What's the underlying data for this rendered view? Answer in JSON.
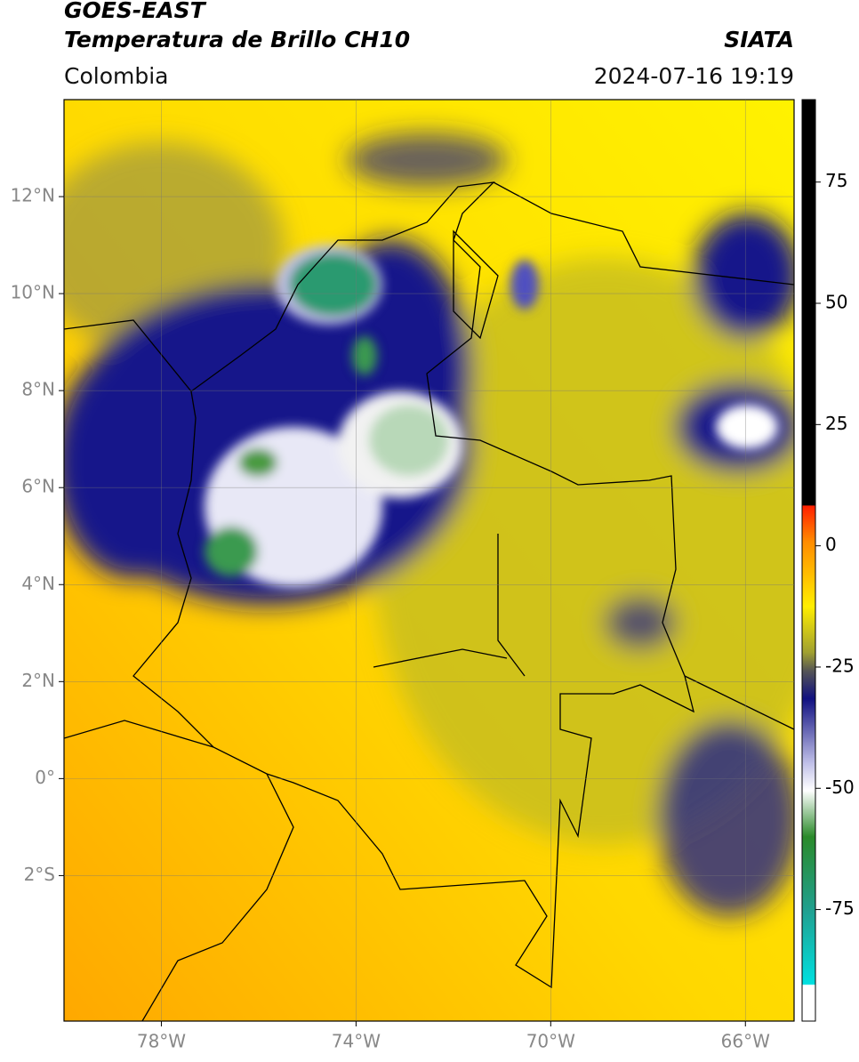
{
  "header": {
    "title": "GOES-EAST",
    "subtitle": "Temperatura de Brillo CH10",
    "source": "SIATA",
    "region": "Colombia",
    "datetime": "2024-07-16 19:19"
  },
  "map": {
    "lonlim": [
      -80,
      -65
    ],
    "latlim": [
      -5,
      14
    ],
    "lonticks": [
      {
        "value": -78,
        "label": "78°W"
      },
      {
        "value": -74,
        "label": "74°W"
      },
      {
        "value": -70,
        "label": "70°W"
      },
      {
        "value": -66,
        "label": "66°W"
      }
    ],
    "latticks": [
      {
        "value": 12,
        "label": "12°N"
      },
      {
        "value": 10,
        "label": "10°N"
      },
      {
        "value": 8,
        "label": "8°N"
      },
      {
        "value": 6,
        "label": "6°N"
      },
      {
        "value": 4,
        "label": "4°N"
      },
      {
        "value": 2,
        "label": "2°N"
      },
      {
        "value": 0,
        "label": "0°"
      },
      {
        "value": -2,
        "label": "2°S"
      }
    ]
  },
  "colorbar": {
    "lim": [
      -98,
      92
    ],
    "ticks": [
      75,
      50,
      25,
      0,
      -25,
      -50,
      -75
    ]
  }
}
